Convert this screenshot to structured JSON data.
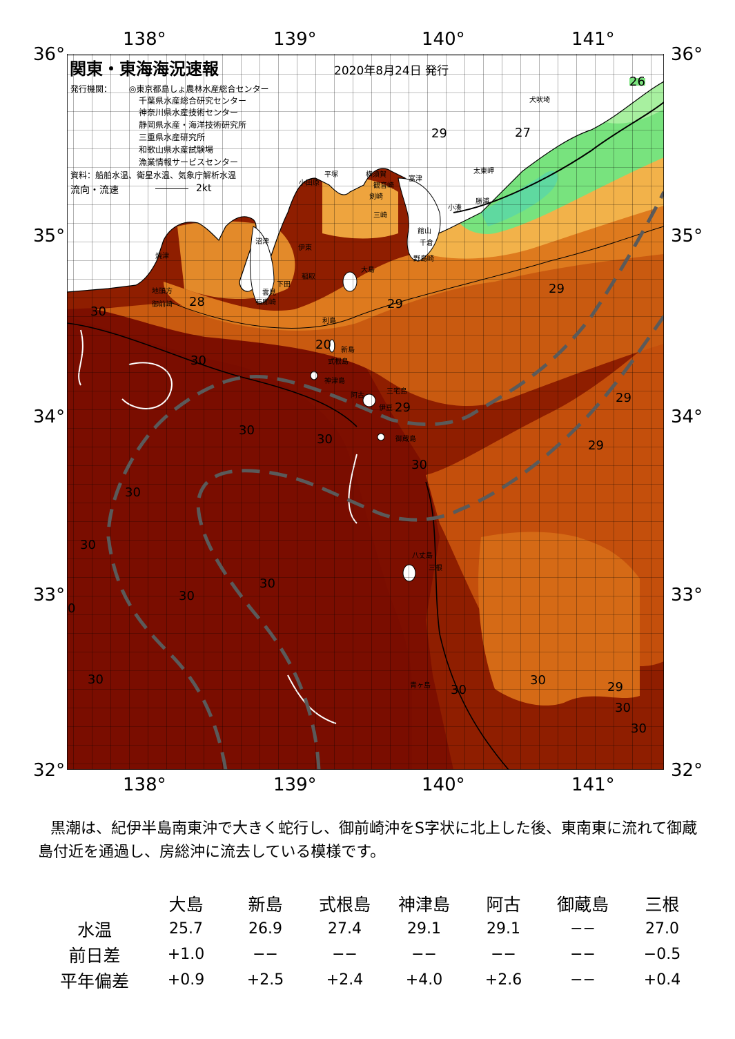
{
  "header": {
    "title": "関東・東海海況速報",
    "date": "2020年8月24日 発行",
    "issuer_label": "発行機関：",
    "issuers": [
      "◎東京都島しょ農林水産総合センター",
      "千葉県水産総合研究センター",
      "神奈川県水産技術センター",
      "静岡県水産・海洋技術研究所",
      "三重県水産研究所",
      "和歌山県水産試験場",
      "漁業情報サービスセンター"
    ],
    "sources": "資料：船舶水温、衛星水温、気象庁解析水温",
    "current_label": "流向・流速",
    "current_scale": "2kt"
  },
  "axes": {
    "lon": [
      "138°",
      "139°",
      "140°",
      "141°"
    ],
    "lat": [
      "36°",
      "35°",
      "34°",
      "33°",
      "32°"
    ]
  },
  "isotherms": [
    "26",
    "27",
    "29",
    "29",
    "30",
    "28",
    "29",
    "29",
    "20",
    "30",
    "30",
    "29",
    "30",
    "30",
    "30",
    "29",
    "29",
    "30",
    "30",
    "30",
    "30",
    "30",
    "30",
    "30",
    "30",
    "30",
    "0"
  ],
  "place_names": [
    "犬吠埼",
    "太東岬",
    "勝浦",
    "小湊",
    "館山",
    "千倉",
    "野島崎",
    "富津",
    "横須賀",
    "観音崎",
    "剣崎",
    "三崎",
    "平塚",
    "小田原",
    "沼津",
    "伊東",
    "焼津",
    "稲取",
    "下田",
    "地頭方",
    "御前崎",
    "石廊崎",
    "雲見",
    "大島",
    "利島",
    "新島",
    "式根島",
    "神津島",
    "三宅島",
    "御蔵島",
    "阿古",
    "伊豆",
    "八丈島",
    "三根",
    "青ヶ島"
  ],
  "description": "黒潮は、紀伊半島南東沖で大きく蛇行し、御前崎沖をS字状に北上した後、東南東に流れて御蔵島付近を通過し、房総沖に流去している模様です。",
  "table": {
    "columns": [
      "大島",
      "新島",
      "式根島",
      "神津島",
      "阿古",
      "御蔵島",
      "三根"
    ],
    "rows": [
      {
        "label": "水温",
        "values": [
          "25.7",
          "26.9",
          "27.4",
          "29.1",
          "29.1",
          "−−",
          "27.0"
        ]
      },
      {
        "label": "前日差",
        "values": [
          "+1.0",
          "−−",
          "−−",
          "−−",
          "−−",
          "−−",
          "−0.5"
        ]
      },
      {
        "label": "平年偏差",
        "values": [
          "+0.9",
          "+2.5",
          "+2.4",
          "+4.0",
          "+2.6",
          "−−",
          "+0.4"
        ]
      }
    ]
  },
  "colors": {
    "sea_warmest": "#7d0f00",
    "sea_30": "#8f1e00",
    "sea_29": "#c95a10",
    "sea_28": "#de7a1e",
    "sea_27": "#f2b24a",
    "sea_26": "#78e37e",
    "land": "#ffffff",
    "kuroshio": "#5a5a5a"
  }
}
